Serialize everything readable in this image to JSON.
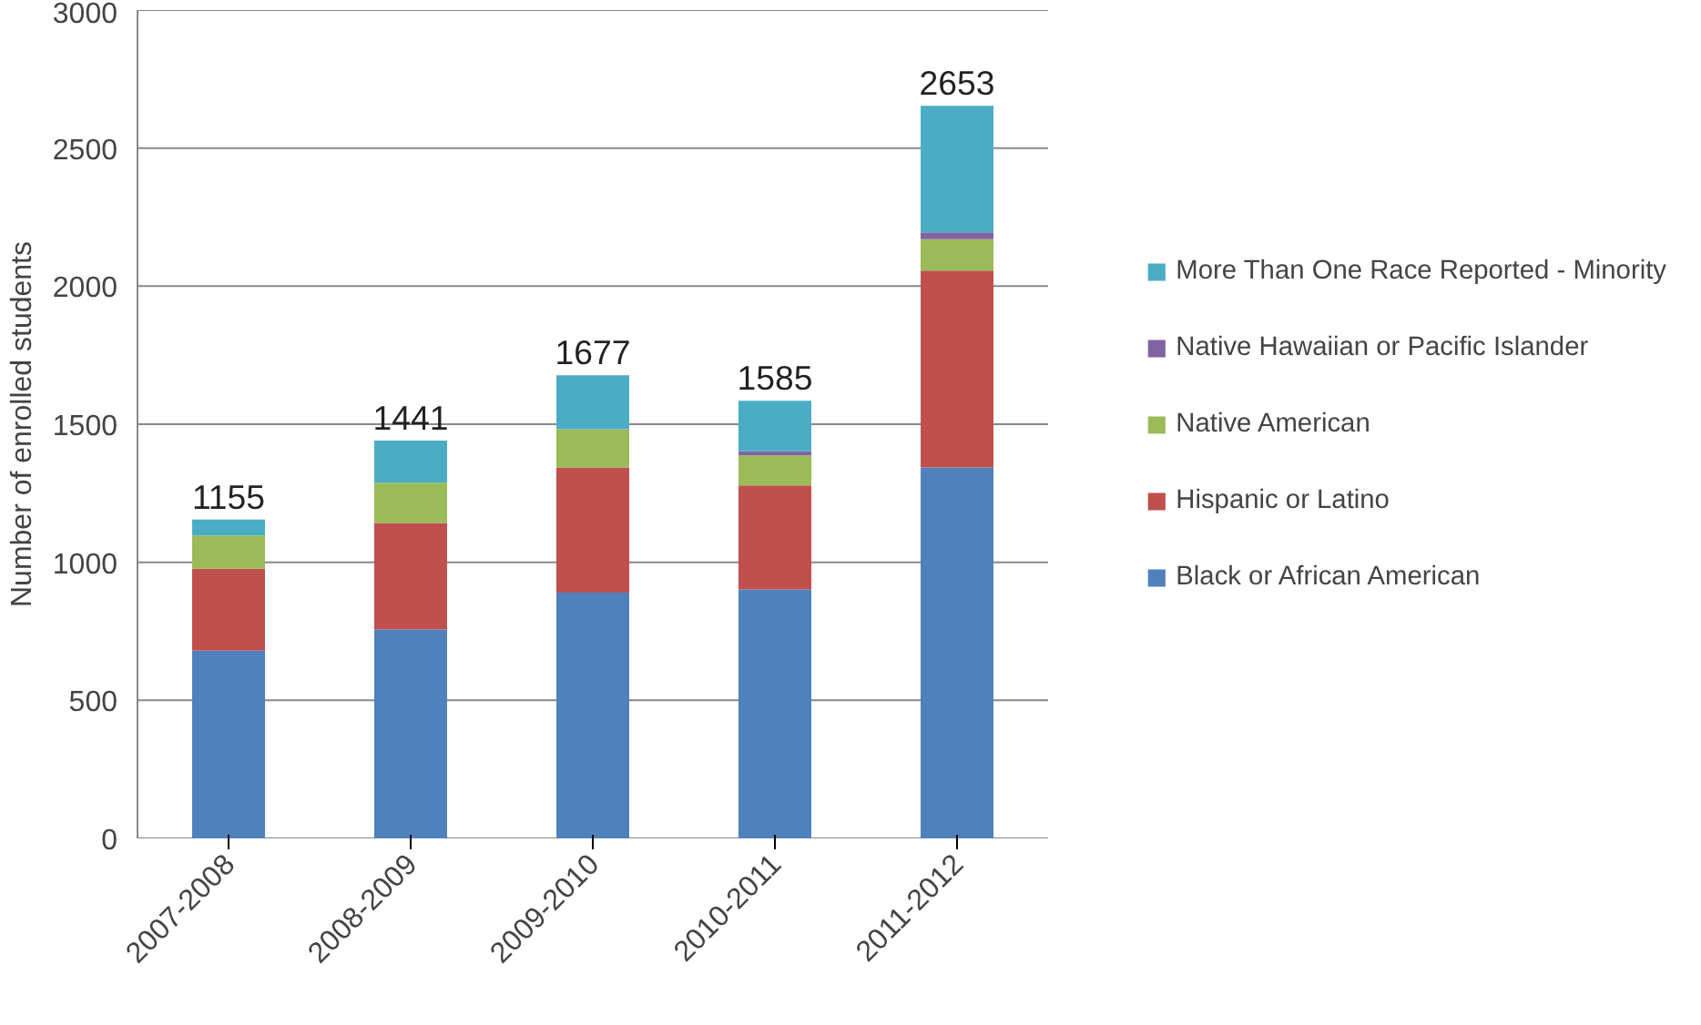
{
  "chart_data": {
    "type": "bar",
    "stacked": true,
    "ylabel": "Number of enrolled students",
    "categories": [
      "2007-2008",
      "2008-2009",
      "2009-2010",
      "2010-2011",
      "2011-2012"
    ],
    "series": [
      {
        "name": "Black or African American",
        "color": "#4f81bd",
        "values": [
          680,
          757,
          890,
          902,
          1343
        ]
      },
      {
        "name": "Hispanic or Latino",
        "color": "#c0504d",
        "values": [
          297,
          385,
          453,
          376,
          713
        ]
      },
      {
        "name": "Native American",
        "color": "#9bbb59",
        "values": [
          120,
          146,
          139,
          109,
          114
        ]
      },
      {
        "name": "Native Hawaiian or Pacific Islander",
        "color": "#8064a2",
        "values": [
          null,
          null,
          null,
          15,
          25
        ]
      },
      {
        "name": "More Than One Race Reported - Minority",
        "color": "#4bacc6",
        "values": [
          58,
          153,
          195,
          183,
          458
        ]
      }
    ],
    "totals": [
      "1155",
      "1441",
      "1677",
      "1585",
      "2653"
    ],
    "ylim": [
      0,
      3000
    ],
    "yticks": [
      0,
      500,
      1000,
      1500,
      2000,
      2500,
      3000
    ],
    "grid": "y",
    "legend": "right"
  }
}
